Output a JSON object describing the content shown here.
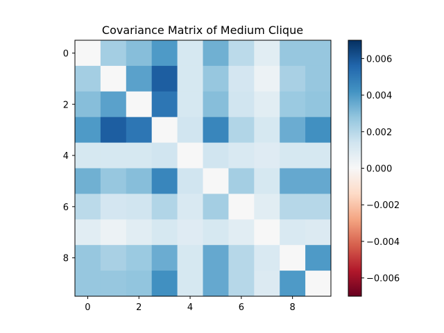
{
  "chart_data": {
    "type": "heatmap",
    "title": "Covariance Matrix of Medium Clique",
    "xlabel": "",
    "ylabel": "",
    "colormap": "RdBu",
    "vmin": -0.007,
    "vmax": 0.007,
    "x_ticks": [
      0,
      2,
      4,
      6,
      8
    ],
    "y_ticks": [
      0,
      2,
      4,
      6,
      8
    ],
    "colorbar_ticks": [
      0.006,
      0.004,
      0.002,
      0.0,
      -0.002,
      -0.004,
      -0.006
    ],
    "colorbar_tick_labels": [
      "0.006",
      "0.004",
      "0.002",
      "0.000",
      "−0.002",
      "−0.004",
      "−0.006"
    ],
    "matrix": [
      [
        0.0,
        0.0024,
        0.003,
        0.004,
        0.0012,
        0.0034,
        0.0019,
        0.0008,
        0.0027,
        0.0027
      ],
      [
        0.0024,
        0.0,
        0.0038,
        0.0058,
        0.0012,
        0.0027,
        0.0013,
        0.0004,
        0.0023,
        0.0027
      ],
      [
        0.003,
        0.0038,
        0.0,
        0.0051,
        0.0012,
        0.003,
        0.0014,
        0.0008,
        0.0026,
        0.0028
      ],
      [
        0.004,
        0.0058,
        0.0051,
        0.0,
        0.0014,
        0.0046,
        0.0021,
        0.0012,
        0.0035,
        0.0043
      ],
      [
        0.0012,
        0.0012,
        0.0012,
        0.0014,
        0.0,
        0.0014,
        0.0011,
        0.0009,
        0.0012,
        0.0012
      ],
      [
        0.0034,
        0.0027,
        0.003,
        0.0046,
        0.0014,
        0.0,
        0.0024,
        0.0012,
        0.0036,
        0.0036
      ],
      [
        0.0019,
        0.0013,
        0.0014,
        0.0021,
        0.0011,
        0.0024,
        0.0,
        0.0008,
        0.002,
        0.002
      ],
      [
        0.0008,
        0.0004,
        0.0008,
        0.0012,
        0.0009,
        0.0012,
        0.0008,
        0.0,
        0.0011,
        0.001
      ],
      [
        0.0027,
        0.0023,
        0.0026,
        0.0035,
        0.0012,
        0.0036,
        0.002,
        0.0011,
        0.0,
        0.004
      ],
      [
        0.0027,
        0.0027,
        0.0028,
        0.0043,
        0.0012,
        0.0036,
        0.002,
        0.001,
        0.004,
        0.0
      ]
    ]
  }
}
